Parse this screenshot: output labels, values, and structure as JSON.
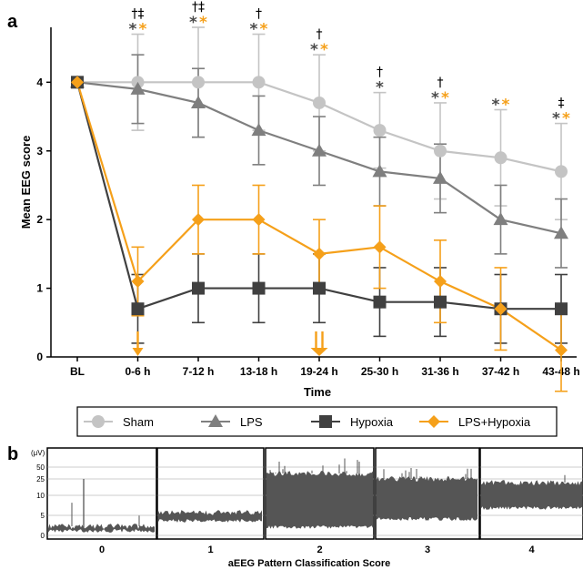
{
  "panel_a": {
    "letter": "a",
    "chart_data": {
      "type": "line",
      "x": [
        "BL",
        "0-6 h",
        "7-12 h",
        "13-18 h",
        "19-24 h",
        "25-30 h",
        "31-36 h",
        "37-42 h",
        "43-48 h"
      ],
      "xlabel": "Time",
      "ylabel": "Mean EEG score",
      "ylim": [
        0,
        4.8
      ],
      "yticks": [
        "0",
        "1",
        "2",
        "3",
        "4"
      ],
      "legend_position": "bottom",
      "series": [
        {
          "name": "Sham",
          "marker": "circle",
          "color": "#c4c4c4",
          "values": [
            4,
            4,
            4,
            4,
            3.7,
            3.3,
            3.0,
            2.9,
            2.7
          ],
          "err": [
            0,
            0.7,
            0.8,
            0.7,
            0.7,
            0.55,
            0.7,
            0.7,
            0.7
          ]
        },
        {
          "name": "LPS",
          "marker": "triangle",
          "color": "#7f7f7f",
          "values": [
            4,
            3.9,
            3.7,
            3.3,
            3.0,
            2.7,
            2.6,
            2.0,
            1.8
          ],
          "err": [
            0,
            0.5,
            0.5,
            0.5,
            0.5,
            0.5,
            0.5,
            0.5,
            0.5
          ]
        },
        {
          "name": "Hypoxia",
          "marker": "square",
          "color": "#404040",
          "values": [
            4,
            0.7,
            1.0,
            1.0,
            1.0,
            0.8,
            0.8,
            0.7,
            0.7
          ],
          "err": [
            0,
            0.5,
            0.5,
            0.5,
            0.5,
            0.5,
            0.5,
            0.5,
            0.5
          ]
        },
        {
          "name": "LPS+Hypoxia",
          "marker": "diamond",
          "color": "#f5a01a",
          "values": [
            4,
            1.1,
            2.0,
            2.0,
            1.5,
            1.6,
            1.1,
            0.7,
            0.1
          ],
          "err": [
            0,
            0.5,
            0.5,
            0.5,
            0.5,
            0.6,
            0.6,
            0.6,
            0.6
          ]
        }
      ],
      "annotations": [
        {
          "x": "0-6 h",
          "dagger": "†‡",
          "stars": [
            "gray",
            "orange"
          ]
        },
        {
          "x": "7-12 h",
          "dagger": "†‡",
          "stars": [
            "gray",
            "orange"
          ]
        },
        {
          "x": "13-18 h",
          "dagger": "†",
          "stars": [
            "gray",
            "orange"
          ]
        },
        {
          "x": "19-24 h",
          "dagger": "†",
          "stars": [
            "gray",
            "orange"
          ]
        },
        {
          "x": "25-30 h",
          "dagger": "†",
          "stars": [
            "gray"
          ]
        },
        {
          "x": "31-36 h",
          "dagger": "†",
          "stars": [
            "gray",
            "orange"
          ]
        },
        {
          "x": "37-42 h",
          "dagger": "",
          "stars": [
            "gray",
            "orange"
          ]
        },
        {
          "x": "43-48 h",
          "dagger": "‡",
          "stars": [
            "gray",
            "orange"
          ]
        }
      ],
      "star_symbol": "*",
      "star_colors": {
        "gray": "#4a4a4a",
        "orange": "#f5a01a"
      },
      "arrows": [
        {
          "x": "0-6 h",
          "count": 1,
          "color": "#f5a01a"
        },
        {
          "x": "19-24 h",
          "count": 2,
          "color": "#f5a01a"
        }
      ]
    }
  },
  "panel_b": {
    "letter": "b",
    "unit_label": "(μV)",
    "y_ticks": [
      "50",
      "25",
      "10",
      "5",
      "0"
    ],
    "xlabel": "aEEG Pattern Classification Score",
    "scores": [
      "0",
      "1",
      "2",
      "3",
      "4"
    ],
    "trace_color": "#555555"
  }
}
